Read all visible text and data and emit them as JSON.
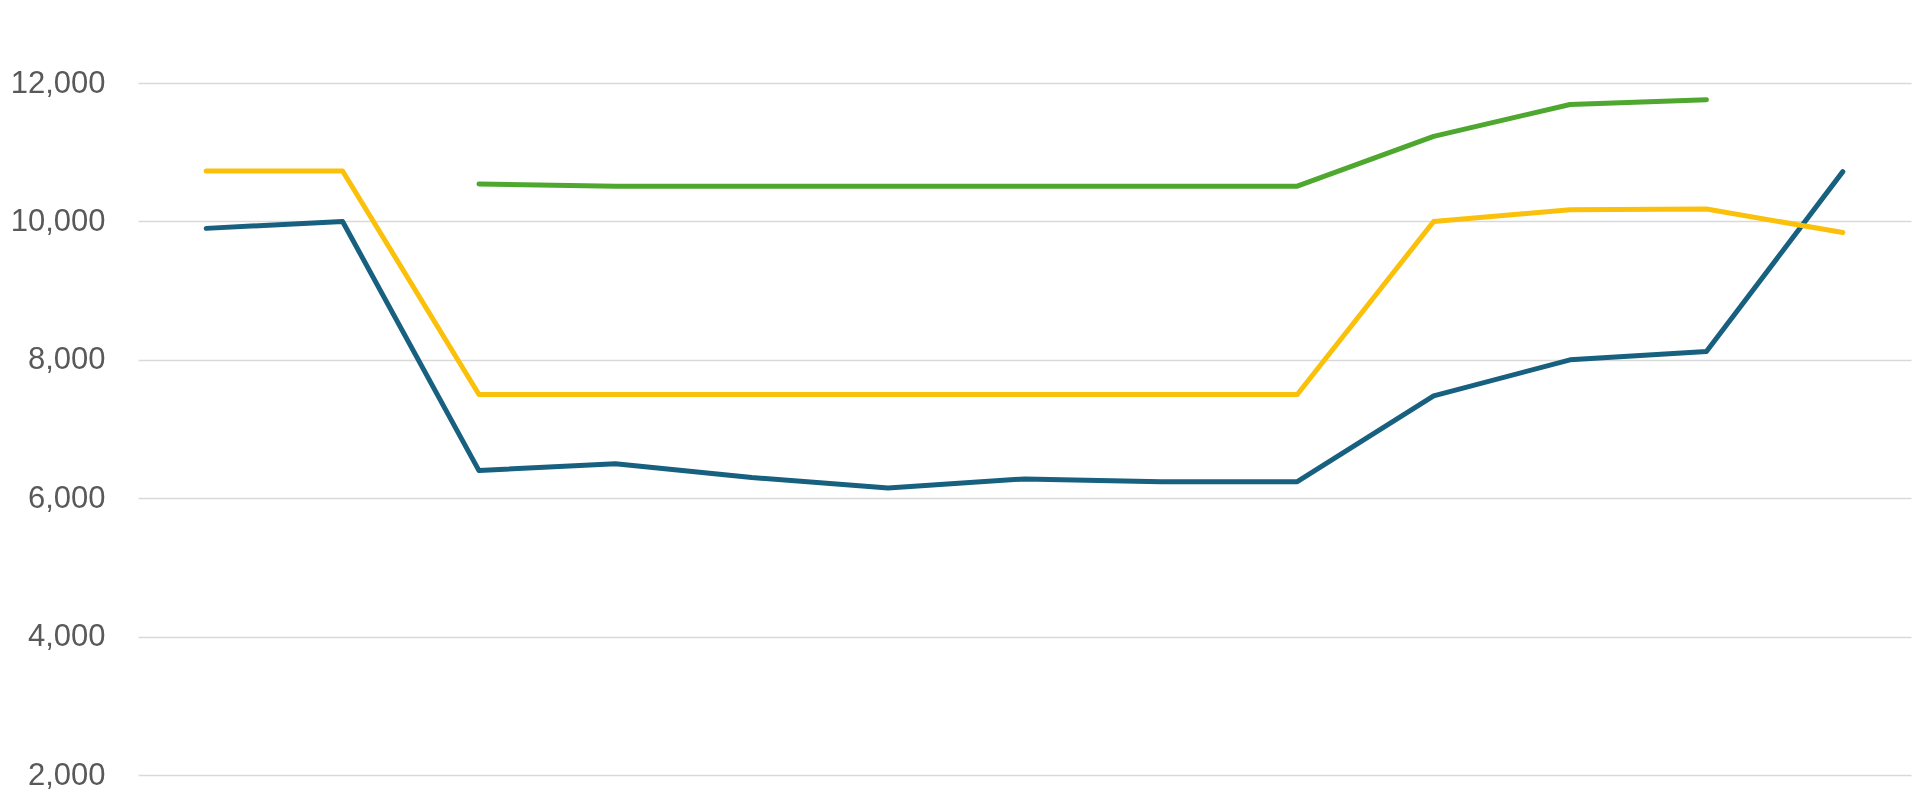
{
  "chart_data": {
    "type": "line",
    "categories": [
      null,
      null,
      null,
      null,
      null,
      null,
      null,
      null,
      null,
      null,
      null,
      null,
      null
    ],
    "series": [
      {
        "color": "#17607f",
        "values": [
          9900,
          10000,
          6400,
          6500,
          6300,
          6150,
          6280,
          6240,
          6240,
          7480,
          8000,
          8120,
          10720
        ]
      },
      {
        "color": "#fbc00a",
        "values": [
          10730,
          10730,
          7500,
          7500,
          7500,
          7500,
          7500,
          7500,
          7500,
          10000,
          10170,
          10180,
          9840
        ]
      },
      {
        "color": "#4ea72e",
        "values": [
          null,
          null,
          10540,
          10510,
          10510,
          10510,
          10510,
          10510,
          10510,
          11230,
          11690,
          11760,
          null
        ]
      }
    ],
    "ylim": [
      1640,
      13200
    ],
    "yticks": [
      {
        "value": 2000,
        "label": "2,000"
      },
      {
        "value": 4000,
        "label": "4,000"
      },
      {
        "value": 6000,
        "label": "6,000"
      },
      {
        "value": 8000,
        "label": "8,000"
      },
      {
        "value": 10000,
        "label": "10,000"
      },
      {
        "value": 12000,
        "label": "12,000"
      }
    ],
    "grid": "y",
    "tick_labels": "y"
  }
}
